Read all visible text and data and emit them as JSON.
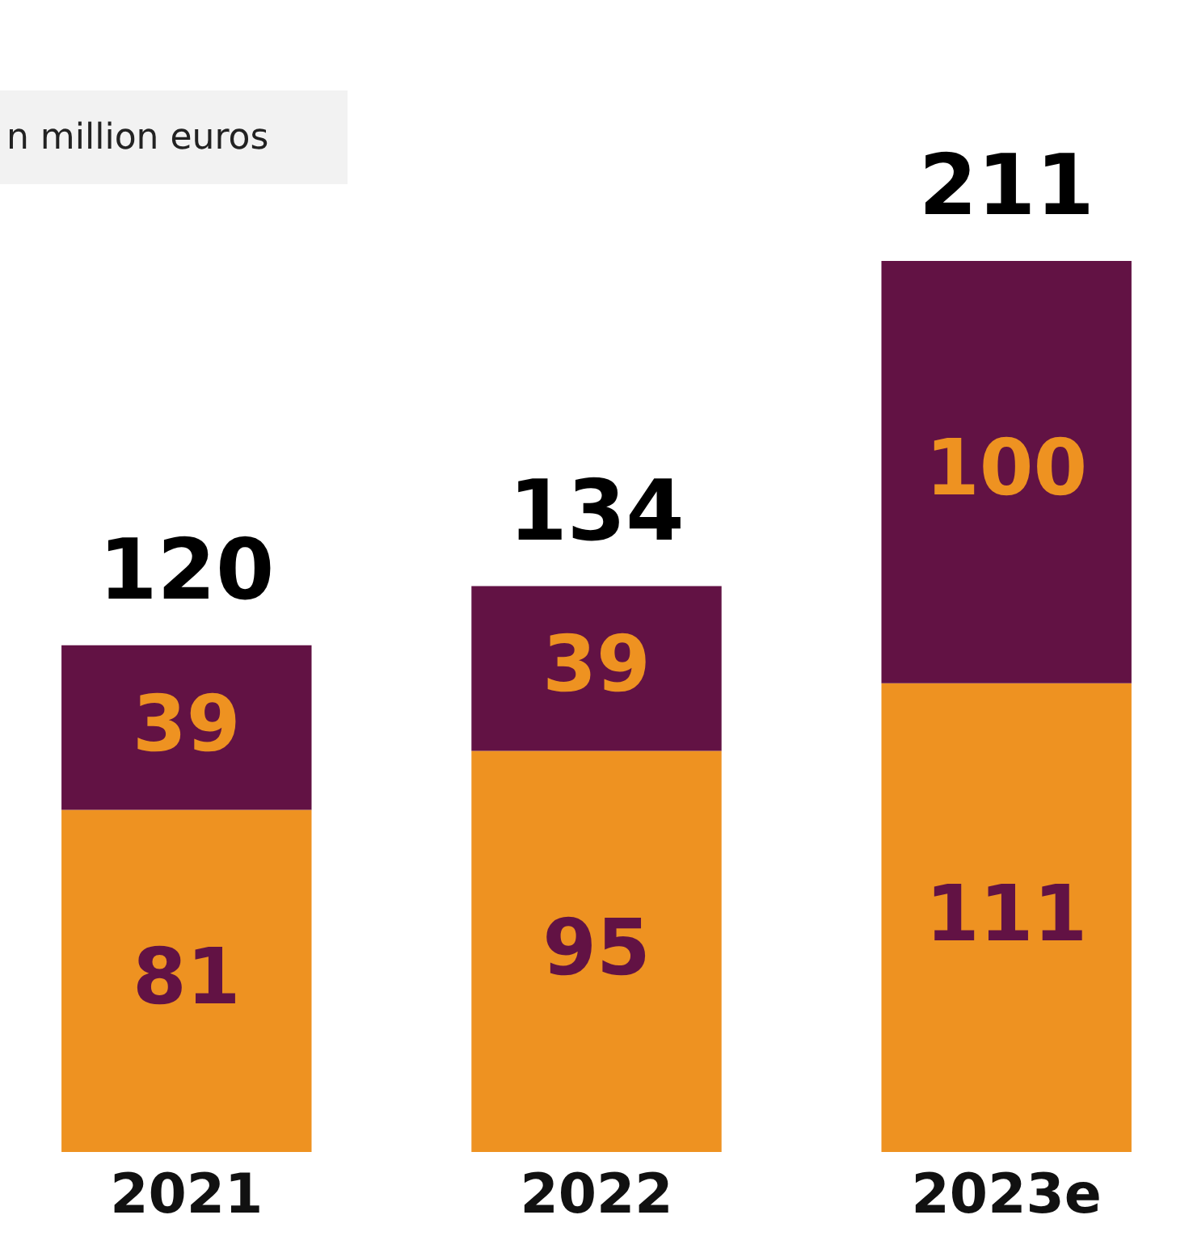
{
  "chart_data": {
    "type": "bar",
    "stacked": true,
    "categories": [
      "2021",
      "2022",
      "2023e"
    ],
    "series": [
      {
        "color": "#ee9221",
        "values": [
          81,
          95,
          111
        ]
      },
      {
        "color": "#621244",
        "values": [
          39,
          39,
          100
        ]
      }
    ],
    "data_labels": true,
    "totals": [
      "120",
      "134",
      "211"
    ],
    "tick_labels": "x",
    "annotations": [
      "n million euros"
    ]
  }
}
